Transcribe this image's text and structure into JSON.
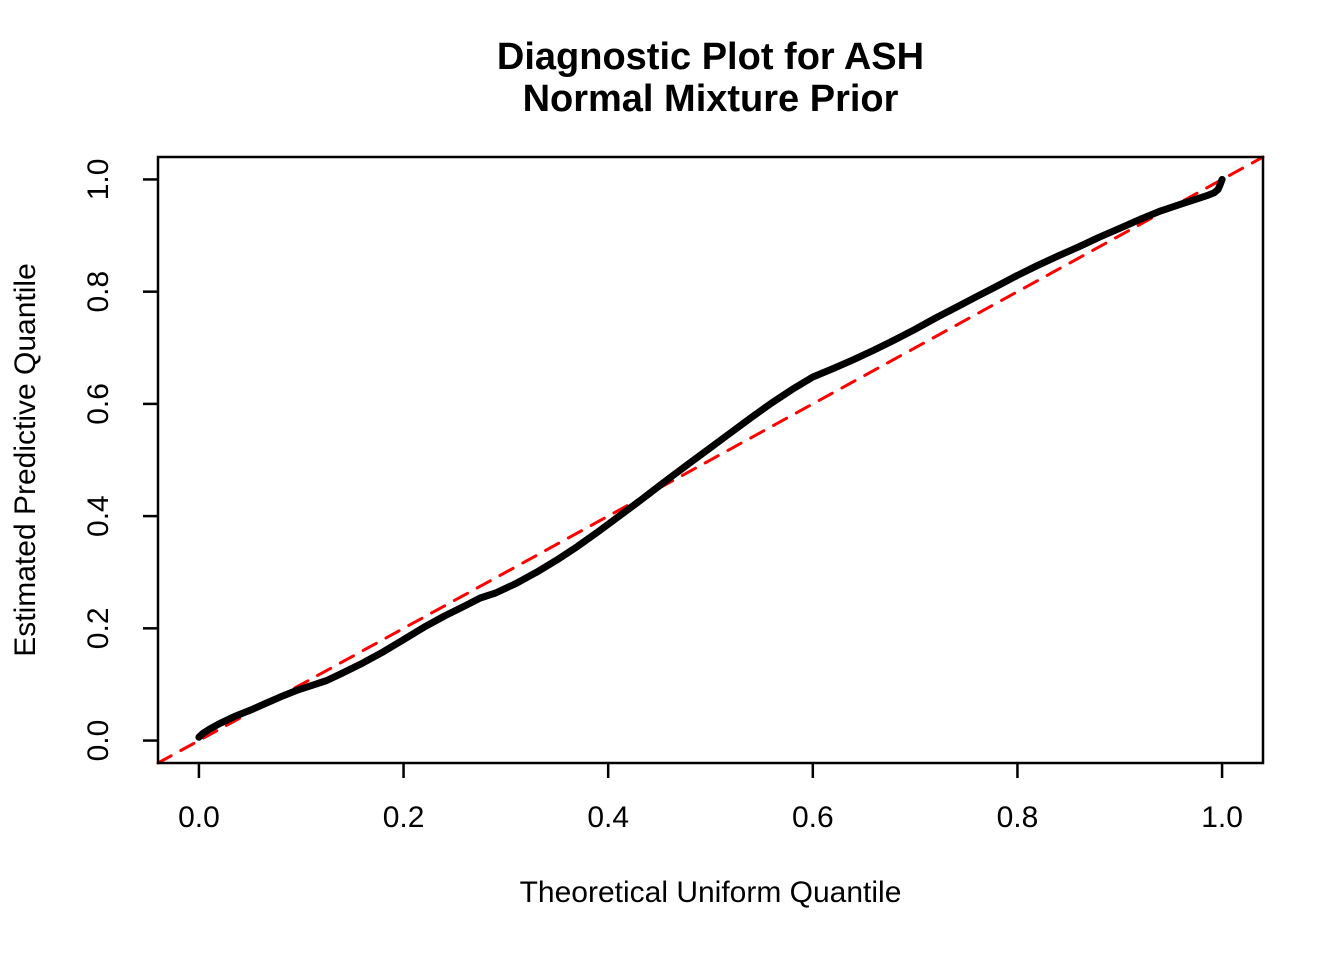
{
  "figure": {
    "title_line1": "Diagnostic Plot for ASH",
    "title_line2": "Normal Mixture Prior"
  },
  "chart_data": {
    "type": "line",
    "title": "Diagnostic Plot for ASH Normal Mixture Prior",
    "xlabel": "Theoretical Uniform Quantile",
    "ylabel": "Estimated Predictive Quantile",
    "x_range": [
      -0.04,
      1.04
    ],
    "y_range": [
      -0.04,
      1.04
    ],
    "grid": false,
    "legend": "none",
    "frame_color": "#000000",
    "text_color": "#000000",
    "x_ticks": [
      {
        "value": 0.0,
        "label": "0.0"
      },
      {
        "value": 0.2,
        "label": "0.2"
      },
      {
        "value": 0.4,
        "label": "0.4"
      },
      {
        "value": 0.6,
        "label": "0.6"
      },
      {
        "value": 0.8,
        "label": "0.8"
      },
      {
        "value": 1.0,
        "label": "1.0"
      }
    ],
    "y_ticks": [
      {
        "value": 0.0,
        "label": "0.0"
      },
      {
        "value": 0.2,
        "label": "0.2"
      },
      {
        "value": 0.4,
        "label": "0.4"
      },
      {
        "value": 0.6,
        "label": "0.6"
      },
      {
        "value": 0.8,
        "label": "0.8"
      },
      {
        "value": 1.0,
        "label": "1.0"
      }
    ],
    "series": [
      {
        "name": "reference-identity-line",
        "role": "y = x reference line",
        "color": "#FF0000",
        "style": "dashed",
        "line_width": 3,
        "points": [
          [
            -0.04,
            -0.04
          ],
          [
            1.04,
            1.04
          ]
        ]
      },
      {
        "name": "estimated-predictive-quantile-curve",
        "role": "sorted estimated predictive quantiles vs uniform quantiles",
        "color": "#000000",
        "style": "solid",
        "line_width": 7,
        "points": [
          [
            0.0,
            0.006
          ],
          [
            0.004,
            0.013
          ],
          [
            0.01,
            0.02
          ],
          [
            0.02,
            0.03
          ],
          [
            0.035,
            0.043
          ],
          [
            0.05,
            0.054
          ],
          [
            0.065,
            0.066
          ],
          [
            0.08,
            0.078
          ],
          [
            0.095,
            0.089
          ],
          [
            0.11,
            0.098
          ],
          [
            0.125,
            0.107
          ],
          [
            0.14,
            0.12
          ],
          [
            0.16,
            0.138
          ],
          [
            0.18,
            0.158
          ],
          [
            0.2,
            0.18
          ],
          [
            0.22,
            0.202
          ],
          [
            0.24,
            0.222
          ],
          [
            0.26,
            0.24
          ],
          [
            0.275,
            0.254
          ],
          [
            0.29,
            0.263
          ],
          [
            0.31,
            0.28
          ],
          [
            0.33,
            0.3
          ],
          [
            0.35,
            0.322
          ],
          [
            0.37,
            0.346
          ],
          [
            0.39,
            0.372
          ],
          [
            0.41,
            0.399
          ],
          [
            0.43,
            0.426
          ],
          [
            0.44,
            0.44
          ],
          [
            0.46,
            0.468
          ],
          [
            0.48,
            0.495
          ],
          [
            0.5,
            0.522
          ],
          [
            0.52,
            0.549
          ],
          [
            0.54,
            0.576
          ],
          [
            0.56,
            0.602
          ],
          [
            0.58,
            0.626
          ],
          [
            0.6,
            0.648
          ],
          [
            0.62,
            0.663
          ],
          [
            0.64,
            0.679
          ],
          [
            0.66,
            0.696
          ],
          [
            0.68,
            0.714
          ],
          [
            0.7,
            0.733
          ],
          [
            0.72,
            0.753
          ],
          [
            0.74,
            0.772
          ],
          [
            0.76,
            0.791
          ],
          [
            0.78,
            0.81
          ],
          [
            0.8,
            0.829
          ],
          [
            0.82,
            0.847
          ],
          [
            0.84,
            0.864
          ],
          [
            0.86,
            0.88
          ],
          [
            0.88,
            0.897
          ],
          [
            0.9,
            0.913
          ],
          [
            0.92,
            0.929
          ],
          [
            0.94,
            0.944
          ],
          [
            0.96,
            0.956
          ],
          [
            0.975,
            0.965
          ],
          [
            0.985,
            0.971
          ],
          [
            0.992,
            0.976
          ],
          [
            0.996,
            0.982
          ],
          [
            0.998,
            0.99
          ],
          [
            1.0,
            1.0
          ]
        ]
      }
    ]
  }
}
